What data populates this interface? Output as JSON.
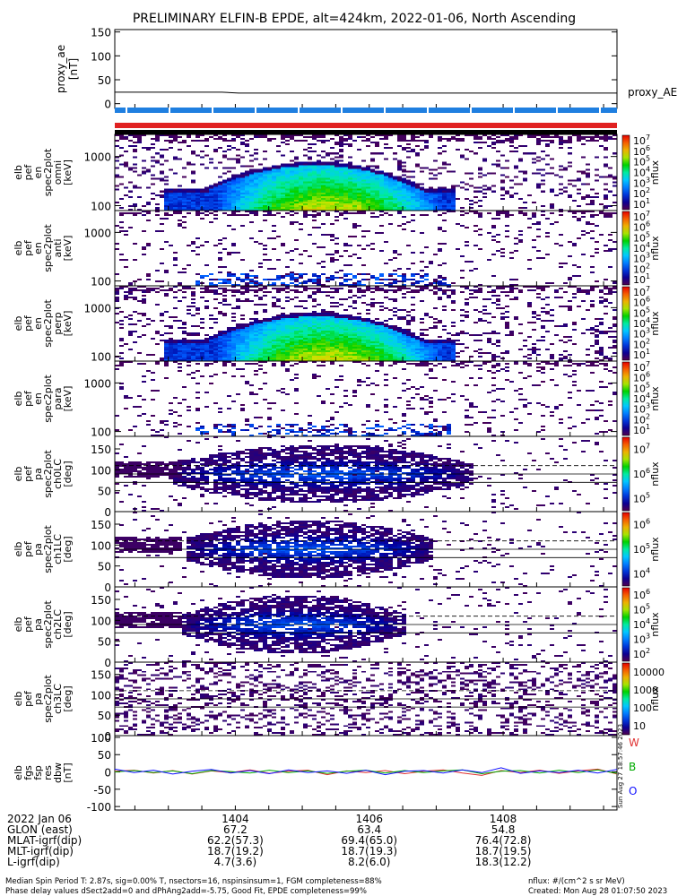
{
  "title": "PRELIMINARY ELFIN-B EPDE, alt=424km, 2022-01-06, North Ascending",
  "chart_data": [
    {
      "type": "line",
      "panel": "proxy_ae",
      "ylabel": [
        "proxy_ae",
        "[nT]"
      ],
      "ylim": [
        -10,
        155
      ],
      "yticks": [
        "150",
        "100",
        "50",
        "0"
      ],
      "legend": "proxy_AE",
      "legend_placement": "right",
      "series": [
        {
          "name": "proxy_AE",
          "x": [
            1402.2,
            1403.8,
            1404.05,
            1409.7
          ],
          "values": [
            24,
            24,
            22,
            22
          ]
        }
      ]
    },
    {
      "type": "heatmap",
      "panel": "pef_energy_omni",
      "ylabel": [
        "elb",
        "pef",
        "en",
        "spec2plot",
        "omni",
        "[keV]"
      ],
      "yticks": [
        "1000",
        "100"
      ],
      "scale": "log",
      "colorbar": {
        "label": "nflux",
        "ticks": [
          "10^1",
          "10^2",
          "10^3",
          "10^4",
          "10^5",
          "10^6",
          "10^7"
        ]
      },
      "note": "energy-time spectrogram, peak flux 1405-1406 at 100-600 keV"
    },
    {
      "type": "heatmap",
      "panel": "pef_energy_anti",
      "ylabel": [
        "elb",
        "pef",
        "en",
        "spec2plot",
        "anti",
        "[keV]"
      ],
      "yticks": [
        "1000",
        "100"
      ],
      "colorbar": {
        "label": "nflux",
        "ticks": [
          "10^1",
          "10^2",
          "10^3",
          "10^4",
          "10^5",
          "10^6",
          "10^7"
        ]
      }
    },
    {
      "type": "heatmap",
      "panel": "pef_energy_perp",
      "ylabel": [
        "elb",
        "pef",
        "en",
        "spec2plot",
        "perp",
        "[keV]"
      ],
      "yticks": [
        "1000",
        "100"
      ],
      "colorbar": {
        "label": "nflux",
        "ticks": [
          "10^1",
          "10^2",
          "10^3",
          "10^4",
          "10^5",
          "10^6",
          "10^7"
        ]
      }
    },
    {
      "type": "heatmap",
      "panel": "pef_energy_para",
      "ylabel": [
        "elb",
        "pef",
        "en",
        "spec2plot",
        "para",
        "[keV]"
      ],
      "yticks": [
        "1000",
        "100"
      ],
      "colorbar": {
        "label": "nflux",
        "ticks": [
          "10^1",
          "10^2",
          "10^3",
          "10^4",
          "10^5",
          "10^6",
          "10^7"
        ]
      }
    },
    {
      "type": "heatmap",
      "panel": "pef_pa_ch0",
      "ylabel": [
        "elb",
        "pef",
        "pa",
        "spec2plot",
        "ch0LC",
        "[deg]"
      ],
      "yticks": [
        "150",
        "100",
        "50",
        "0"
      ],
      "colorbar": {
        "label": "nflux",
        "ticks": [
          "10^5",
          "10^6",
          "10^7"
        ]
      }
    },
    {
      "type": "heatmap",
      "panel": "pef_pa_ch1",
      "ylabel": [
        "elb",
        "pef",
        "pa",
        "spec2plot",
        "ch1LC",
        "[deg]"
      ],
      "yticks": [
        "150",
        "100",
        "50",
        "0"
      ],
      "colorbar": {
        "label": "nflux",
        "ticks": [
          "10^4",
          "10^5",
          "10^6"
        ]
      }
    },
    {
      "type": "heatmap",
      "panel": "pef_pa_ch2",
      "ylabel": [
        "elb",
        "pef",
        "pa",
        "spec2plot",
        "ch2LC",
        "[deg]"
      ],
      "yticks": [
        "150",
        "100",
        "50",
        "0"
      ],
      "colorbar": {
        "label": "nflux",
        "ticks": [
          "10^2",
          "10^3",
          "10^4",
          "10^5",
          "10^6"
        ]
      }
    },
    {
      "type": "heatmap",
      "panel": "pef_pa_ch3",
      "ylabel": [
        "elb",
        "pef",
        "pa",
        "spec2plot",
        "ch3LC",
        "[deg]"
      ],
      "yticks": [
        "150",
        "100",
        "50",
        "0"
      ],
      "colorbar": {
        "label": "nflux",
        "ticks": [
          "10",
          "100",
          "1000",
          "10000"
        ]
      }
    },
    {
      "type": "line",
      "panel": "fgs_res_dbw",
      "ylabel": [
        "elb",
        "fgs",
        "fsp",
        "res",
        "dbw",
        "[nT]"
      ],
      "ylim": [
        -110,
        105
      ],
      "yticks": [
        "100",
        "50",
        "0",
        "-50",
        "-100"
      ],
      "series": [
        {
          "name": "W",
          "color": "#e03030",
          "values": [
            2,
            5,
            -3,
            4,
            -6,
            3,
            -2,
            6,
            -4,
            2,
            5,
            -8,
            3,
            -2,
            4,
            -5,
            2,
            6,
            -3,
            -10,
            4,
            -2,
            5,
            -4,
            3,
            8,
            -6
          ]
        },
        {
          "name": "B",
          "color": "#00aa00",
          "values": [
            0,
            4,
            -2,
            3,
            -5,
            4,
            1,
            -3,
            5,
            -2,
            3,
            -4,
            2,
            5,
            -3,
            4,
            -2,
            3,
            6,
            -5,
            2,
            4,
            -3,
            5,
            -2,
            6,
            -4
          ]
        },
        {
          "name": "O",
          "color": "#1010ff",
          "values": [
            8,
            -2,
            5,
            -6,
            2,
            7,
            -3,
            4,
            -5,
            6,
            -2,
            3,
            -4,
            5,
            -8,
            2,
            4,
            -3,
            6,
            -2,
            12,
            -4,
            3,
            -2,
            5,
            -3,
            7
          ]
        }
      ]
    }
  ],
  "x_axis": {
    "ticks": [
      "1404",
      "1406",
      "1408"
    ],
    "rows": [
      {
        "label": "2022 Jan 06",
        "values": [
          "1404",
          "1406",
          "1408"
        ]
      },
      {
        "label": "GLON (east)",
        "values": [
          "67.2",
          "63.4",
          "54.8"
        ]
      },
      {
        "label": "MLAT-igrf(dip)",
        "values": [
          "62.2(57.3)",
          "69.4(65.0)",
          "76.4(72.8)"
        ]
      },
      {
        "label": "MLT-igrf(dip)",
        "values": [
          "18.7(19.2)",
          "18.7(19.3)",
          "18.7(19.5)"
        ]
      },
      {
        "label": "L-igrf(dip)",
        "values": [
          "4.7(3.6)",
          "8.2(6.0)",
          "18.3(12.2)"
        ]
      }
    ]
  },
  "footer": {
    "line1": "Median Spin Period T: 2.87s, sig=0.00% T, nsectors=16, nspinsinsum=1, FGM completeness=88%",
    "line2": "Phase delay values dSect2add=0 and dPhAng2add=-5.75, Good Fit, EPDE completeness=99%",
    "flux_units": "nflux: #/(cm^2 s sr MeV)",
    "created": "Created: Mon Aug 28 01:07:50 2023"
  },
  "side_stamp": "Sun Aug 27 18:57:46 2023"
}
